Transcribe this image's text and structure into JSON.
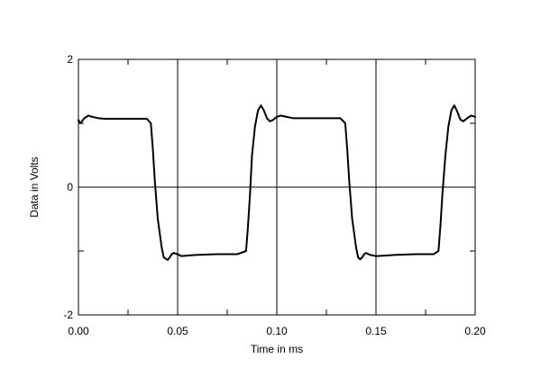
{
  "chart_data": {
    "type": "line",
    "title": "",
    "xlabel": "Time in ms",
    "ylabel": "Data in Volts",
    "xlim": [
      0,
      0.2
    ],
    "ylim": [
      -2,
      2
    ],
    "grid": true,
    "legend": "none",
    "x_ticks": [
      {
        "value": 0.0,
        "label": "0.00"
      },
      {
        "value": 0.05,
        "label": "0.05"
      },
      {
        "value": 0.1,
        "label": "0.10"
      },
      {
        "value": 0.15,
        "label": "0.15"
      },
      {
        "value": 0.2,
        "label": "0.20"
      }
    ],
    "y_ticks": [
      {
        "value": -2,
        "label": "-2"
      },
      {
        "value": 0,
        "label": "0"
      },
      {
        "value": 2,
        "label": "2"
      }
    ],
    "series": [
      {
        "color": "#000000",
        "x": [
          0.0,
          0.001,
          0.003,
          0.005,
          0.007,
          0.01,
          0.013,
          0.02,
          0.03,
          0.0345,
          0.0365,
          0.0375,
          0.0385,
          0.04,
          0.042,
          0.043,
          0.044,
          0.045,
          0.046,
          0.047,
          0.048,
          0.05,
          0.052,
          0.055,
          0.06,
          0.07,
          0.08,
          0.0845,
          0.0855,
          0.0865,
          0.0875,
          0.089,
          0.0905,
          0.092,
          0.0935,
          0.095,
          0.0965,
          0.098,
          0.1,
          0.102,
          0.105,
          0.108,
          0.11,
          0.12,
          0.125,
          0.132,
          0.1345,
          0.1355,
          0.1365,
          0.138,
          0.14,
          0.141,
          0.142,
          0.143,
          0.144,
          0.145,
          0.147,
          0.15,
          0.155,
          0.16,
          0.17,
          0.179,
          0.1815,
          0.1825,
          0.1835,
          0.185,
          0.1865,
          0.188,
          0.1895,
          0.191,
          0.1925,
          0.194,
          0.196,
          0.198,
          0.2
        ],
        "y": [
          1.05,
          1.0,
          1.08,
          1.12,
          1.1,
          1.08,
          1.07,
          1.07,
          1.07,
          1.07,
          1.0,
          0.6,
          0.1,
          -0.5,
          -0.95,
          -1.1,
          -1.12,
          -1.14,
          -1.1,
          -1.05,
          -1.03,
          -1.05,
          -1.08,
          -1.07,
          -1.06,
          -1.05,
          -1.05,
          -1.0,
          -0.6,
          -0.1,
          0.5,
          0.95,
          1.2,
          1.28,
          1.2,
          1.08,
          1.03,
          1.05,
          1.1,
          1.12,
          1.1,
          1.08,
          1.08,
          1.08,
          1.08,
          1.08,
          1.0,
          0.6,
          0.1,
          -0.5,
          -0.95,
          -1.1,
          -1.13,
          -1.1,
          -1.05,
          -1.03,
          -1.06,
          -1.08,
          -1.07,
          -1.06,
          -1.05,
          -1.05,
          -1.0,
          -0.6,
          -0.1,
          0.5,
          0.95,
          1.2,
          1.28,
          1.18,
          1.06,
          1.03,
          1.08,
          1.12,
          1.1
        ]
      }
    ]
  }
}
